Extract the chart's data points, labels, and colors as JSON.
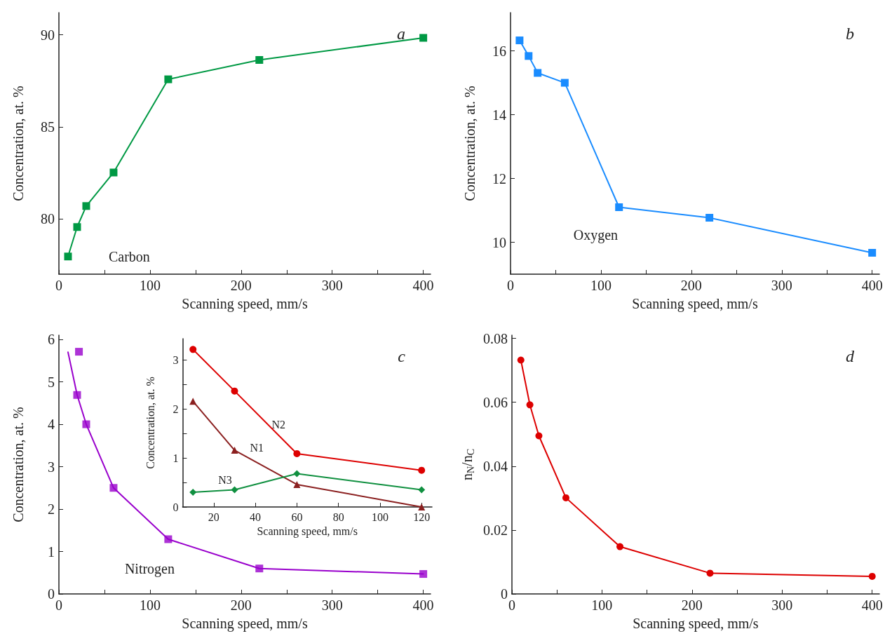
{
  "chart_data": [
    {
      "type": "line",
      "xlabel": "Scanning speed, mm/s",
      "ylabel": "Concentration, at. %",
      "marker": "square",
      "xlim": [
        0,
        408
      ],
      "xticks": [
        0,
        {
          "value": 50,
          "label": null
        },
        100,
        {
          "value": 150,
          "label": null
        },
        200,
        {
          "value": 250,
          "label": null
        },
        300,
        {
          "value": 350,
          "label": null
        },
        400
      ],
      "ylim": [
        77,
        91.2
      ],
      "yticks": [
        80,
        85,
        90
      ],
      "annotations": [
        "a"
      ],
      "series": [
        {
          "name": "Carbon",
          "color": "#009944",
          "x": [
            10,
            20,
            30,
            60,
            120,
            220,
            400
          ],
          "values": [
            77.96,
            79.56,
            80.7,
            82.52,
            87.58,
            88.63,
            89.83
          ]
        }
      ]
    },
    {
      "type": "line",
      "xlabel": "Scanning speed, mm/s",
      "ylabel": "Concentration, at. %",
      "marker": "square",
      "xlim": [
        0,
        408
      ],
      "xticks": [
        0,
        {
          "value": 50,
          "label": null
        },
        100,
        {
          "value": 150,
          "label": null
        },
        200,
        {
          "value": 250,
          "label": null
        },
        300,
        {
          "value": 350,
          "label": null
        },
        400
      ],
      "ylim": [
        9,
        17.2
      ],
      "yticks": [
        10,
        12,
        14,
        16
      ],
      "annotations": [
        "b"
      ],
      "series": [
        {
          "name": "Oxygen",
          "color": "#1a8cff",
          "x": [
            10,
            20,
            30,
            60,
            120,
            220,
            400
          ],
          "values": [
            16.33,
            15.84,
            15.31,
            15.0,
            11.1,
            10.77,
            9.67
          ]
        }
      ]
    },
    {
      "type": "line",
      "xlabel": "Scanning speed, mm/s",
      "ylabel": "Concentration, at. %",
      "marker": "square",
      "xlim": [
        0,
        408
      ],
      "xticks": [
        0,
        {
          "value": 50,
          "label": null
        },
        100,
        {
          "value": 150,
          "label": null
        },
        200,
        {
          "value": 250,
          "label": null
        },
        300,
        {
          "value": 350,
          "label": null
        },
        400
      ],
      "ylim": [
        0,
        6.1
      ],
      "yticks": [
        0,
        1,
        2,
        3,
        4,
        5,
        6
      ],
      "annotations": [
        "c"
      ],
      "series": [
        {
          "name": "Nitrogen",
          "color": "#9900cc",
          "marker": "none",
          "x": [
            10,
            20,
            30,
            60,
            120,
            220,
            400
          ],
          "values": [
            5.7,
            4.69,
            4.0,
            2.5,
            1.29,
            0.6,
            0.47
          ]
        },
        {
          "type": "scatter",
          "color": "#9900cc",
          "x": [
            22,
            20,
            30,
            60,
            120,
            220,
            400
          ],
          "values": [
            5.71,
            4.69,
            4.0,
            2.5,
            1.29,
            0.6,
            0.47
          ]
        }
      ]
    },
    {
      "type": "line",
      "xlabel": "Scanning speed, mm/s",
      "ylabel": "Concentration, at. %",
      "xlim": [
        5,
        125
      ],
      "xticks": [
        20,
        40,
        60,
        80,
        100,
        120
      ],
      "ylim": [
        0,
        3.44
      ],
      "yticks": [
        0,
        {
          "value": 0.5,
          "label": null
        },
        1,
        {
          "value": 1.5,
          "label": null
        },
        2,
        {
          "value": 2.5,
          "label": null
        },
        3
      ],
      "series": [
        {
          "name": "N2",
          "color": "#dd0000",
          "marker": "circle",
          "x": [
            10,
            30,
            60,
            120
          ],
          "values": [
            3.22,
            2.37,
            1.09,
            0.75
          ]
        },
        {
          "name": "N1",
          "color": "#8b2020",
          "marker": "triangle",
          "x": [
            10,
            30,
            60,
            120
          ],
          "values": [
            2.16,
            1.16,
            0.46,
            0.0
          ]
        },
        {
          "name": "N3",
          "color": "#109040",
          "marker": "diamond",
          "x": [
            10,
            30,
            60,
            120
          ],
          "values": [
            0.3,
            0.35,
            0.68,
            0.35
          ]
        }
      ]
    },
    {
      "type": "line",
      "xlabel": "Scanning speed, mm/s",
      "ylabel": "n$_{N}$/n$_{C}$",
      "marker": "circle",
      "xlim": [
        0,
        408
      ],
      "xticks": [
        0,
        {
          "value": 50,
          "label": null
        },
        100,
        {
          "value": 150,
          "label": null
        },
        200,
        {
          "value": 250,
          "label": null
        },
        300,
        {
          "value": 350,
          "label": null
        },
        400
      ],
      "ylim": [
        0,
        0.081
      ],
      "yticks": [
        0,
        0.02,
        0.04,
        0.06,
        0.08
      ],
      "annotations": [
        "d"
      ],
      "series": [
        {
          "color": "#dd0000",
          "x": [
            10,
            20,
            30,
            60,
            120,
            220,
            400
          ],
          "values": [
            0.0732,
            0.0592,
            0.0495,
            0.0301,
            0.0148,
            0.0065,
            0.0055
          ]
        }
      ]
    }
  ]
}
